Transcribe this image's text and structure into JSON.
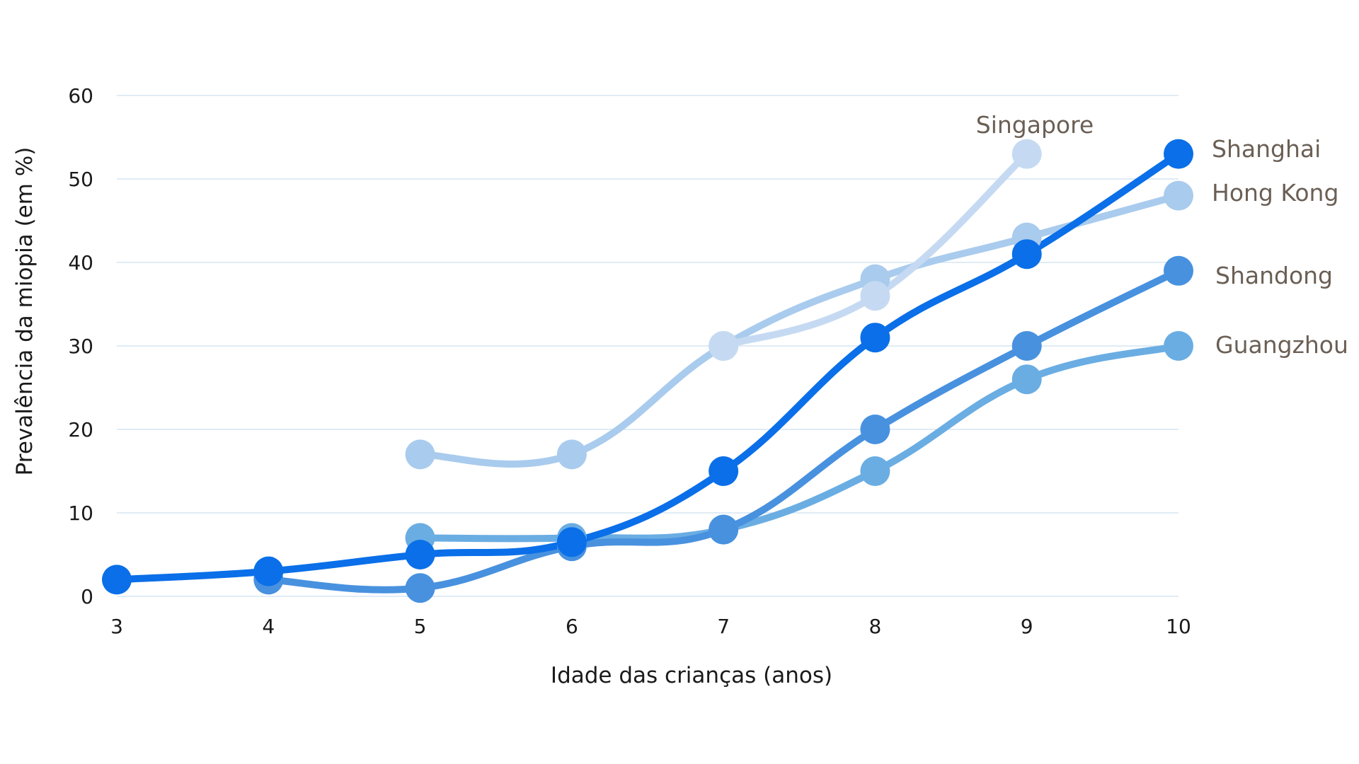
{
  "chart_data": {
    "type": "line",
    "title": "",
    "xlabel": "Idade das crianças (anos)",
    "ylabel": "Prevalência da miopia (em %)",
    "xlim": [
      3,
      10
    ],
    "ylim": [
      0,
      60
    ],
    "xticks": [
      3,
      4,
      5,
      6,
      7,
      8,
      9,
      10
    ],
    "yticks": [
      0,
      10,
      20,
      30,
      40,
      50,
      60
    ],
    "grid": "horizontal",
    "legend": "inline-labels-at-line-ends",
    "series": [
      {
        "name": "Hong Kong",
        "color": "#a9cbed",
        "x": [
          5,
          6,
          7,
          8,
          9,
          10
        ],
        "y": [
          17,
          17,
          30,
          38,
          43,
          48
        ]
      },
      {
        "name": "Singapore",
        "color": "#c5daf2",
        "x": [
          7,
          8,
          9
        ],
        "y": [
          30,
          36,
          53
        ]
      },
      {
        "name": "Guangzhou",
        "color": "#6aade3",
        "x": [
          5,
          6,
          7,
          8,
          9,
          10
        ],
        "y": [
          7,
          7,
          8,
          15,
          26,
          30
        ]
      },
      {
        "name": "Shandong",
        "color": "#4891df",
        "x": [
          4,
          5,
          6,
          7,
          8,
          9,
          10
        ],
        "y": [
          2,
          1,
          6,
          8,
          20,
          30,
          39
        ]
      },
      {
        "name": "Shanghai",
        "color": "#0a6fe8",
        "x": [
          3,
          4,
          5,
          6,
          7,
          8,
          9,
          10
        ],
        "y": [
          2,
          3,
          5,
          6.5,
          15,
          31,
          41,
          53
        ]
      }
    ]
  }
}
